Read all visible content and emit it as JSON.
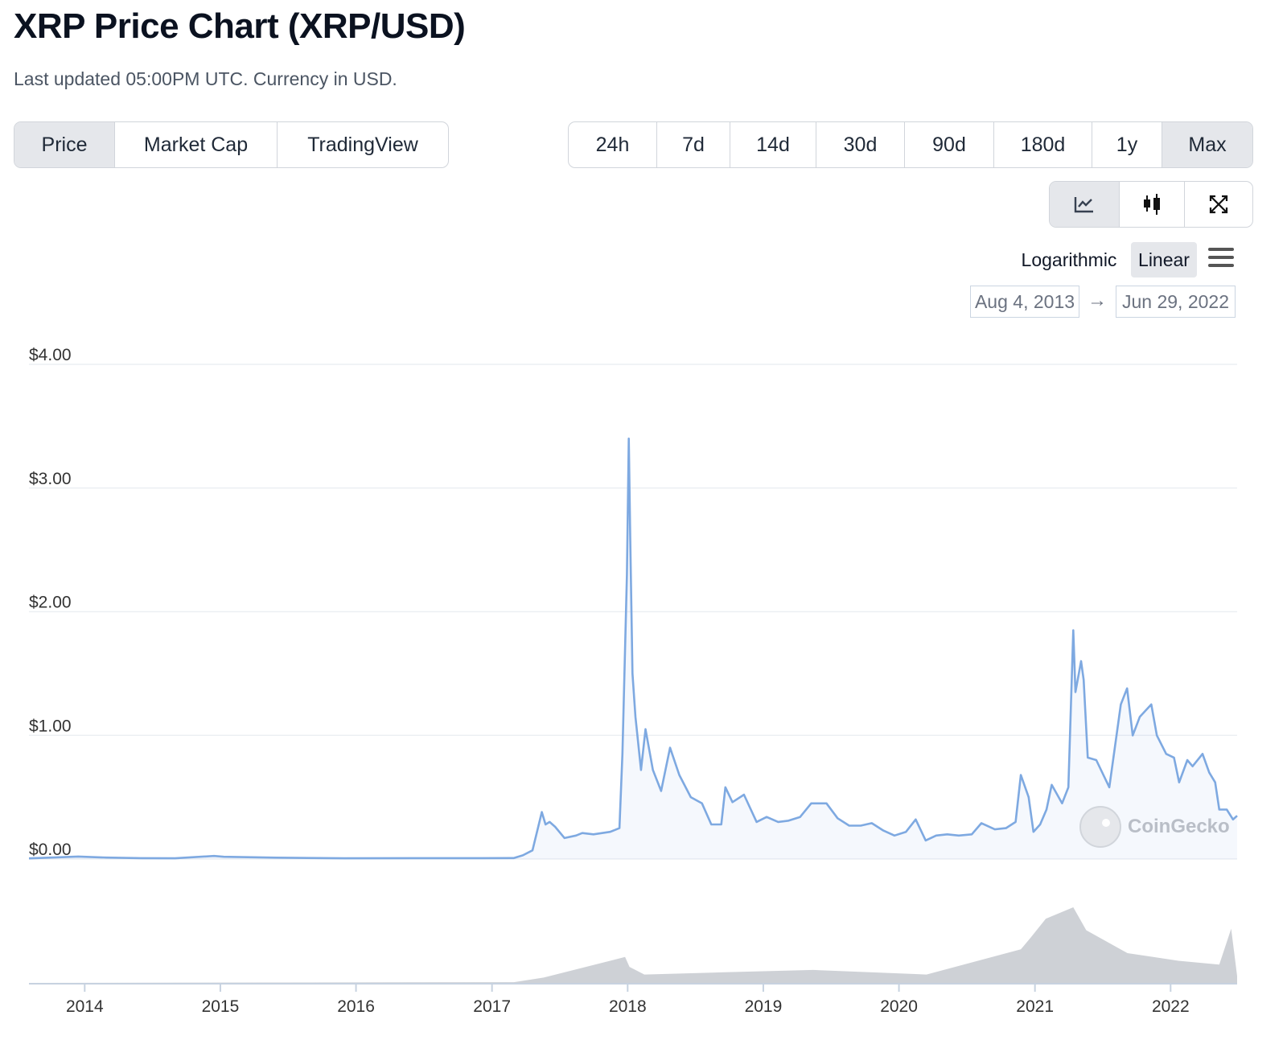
{
  "header": {
    "title": "XRP Price Chart (XRP/USD)",
    "subtitle": "Last updated 05:00PM UTC. Currency in USD."
  },
  "view_tabs": [
    {
      "label": "Price",
      "active": true
    },
    {
      "label": "Market Cap",
      "active": false
    },
    {
      "label": "TradingView",
      "active": false
    }
  ],
  "range_tabs": [
    {
      "label": "24h",
      "active": false
    },
    {
      "label": "7d",
      "active": false
    },
    {
      "label": "14d",
      "active": false
    },
    {
      "label": "30d",
      "active": false
    },
    {
      "label": "90d",
      "active": false
    },
    {
      "label": "180d",
      "active": false
    },
    {
      "label": "1y",
      "active": false
    },
    {
      "label": "Max",
      "active": true
    }
  ],
  "chart_type_icons": [
    "line-chart-icon",
    "candlestick-icon",
    "expand-icon"
  ],
  "scale": {
    "log_label": "Logarithmic",
    "linear_label": "Linear",
    "selected": "Linear"
  },
  "date_range": {
    "from": "Aug 4, 2013",
    "arrow": "→",
    "to": "Jun 29, 2022"
  },
  "watermark": {
    "text": "CoinGecko"
  },
  "colors": {
    "line": "#7ea9e1",
    "volume": "#c5c9cf",
    "grid": "#eceff3",
    "axis": "#c7d2e0"
  },
  "chart_data": {
    "type": "area",
    "series": [
      {
        "x": [
          "2013-08-04",
          "2013-12-15",
          "2014-03-01",
          "2014-06-01",
          "2014-09-01",
          "2014-12-15",
          "2015-01-10",
          "2015-06-01",
          "2015-12-01",
          "2016-06-01",
          "2016-12-01",
          "2017-03-01",
          "2017-03-25",
          "2017-04-20",
          "2017-05-15",
          "2017-05-25",
          "2017-06-05",
          "2017-06-20",
          "2017-07-15",
          "2017-08-15",
          "2017-09-01",
          "2017-10-01",
          "2017-11-15",
          "2017-12-10",
          "2017-12-18",
          "2017-12-30",
          "2018-01-04",
          "2018-01-08",
          "2018-01-14",
          "2018-01-22",
          "2018-02-06",
          "2018-02-18",
          "2018-03-10",
          "2018-04-01",
          "2018-04-25",
          "2018-05-20",
          "2018-06-20",
          "2018-07-20",
          "2018-08-14",
          "2018-09-10",
          "2018-09-21",
          "2018-10-10",
          "2018-11-10",
          "2018-12-14",
          "2019-01-10",
          "2019-02-10",
          "2019-03-10",
          "2019-04-10",
          "2019-05-10",
          "2019-06-20",
          "2019-07-20",
          "2019-08-20",
          "2019-09-20",
          "2019-10-20",
          "2019-11-20",
          "2019-12-20",
          "2020-01-20",
          "2020-02-15",
          "2020-03-13",
          "2020-04-10",
          "2020-05-10",
          "2020-06-10",
          "2020-07-15",
          "2020-08-10",
          "2020-09-15",
          "2020-10-15",
          "2020-11-10",
          "2020-11-24",
          "2020-12-15",
          "2020-12-28",
          "2021-01-15",
          "2021-02-01",
          "2021-02-15",
          "2021-03-15",
          "2021-04-01",
          "2021-04-14",
          "2021-04-20",
          "2021-05-05",
          "2021-05-12",
          "2021-05-23",
          "2021-06-15",
          "2021-07-20",
          "2021-08-20",
          "2021-09-06",
          "2021-09-21",
          "2021-10-10",
          "2021-11-10",
          "2021-11-25",
          "2021-12-20",
          "2022-01-10",
          "2022-01-24",
          "2022-02-15",
          "2022-03-01",
          "2022-03-28",
          "2022-04-15",
          "2022-05-01",
          "2022-05-12",
          "2022-06-01",
          "2022-06-18",
          "2022-06-29"
        ],
        "y": [
          0.005,
          0.02,
          0.012,
          0.007,
          0.006,
          0.025,
          0.018,
          0.011,
          0.006,
          0.007,
          0.007,
          0.008,
          0.03,
          0.07,
          0.38,
          0.28,
          0.3,
          0.26,
          0.17,
          0.19,
          0.21,
          0.2,
          0.22,
          0.25,
          0.85,
          2.3,
          3.4,
          2.6,
          1.5,
          1.15,
          0.72,
          1.05,
          0.72,
          0.55,
          0.9,
          0.68,
          0.5,
          0.45,
          0.28,
          0.28,
          0.58,
          0.46,
          0.52,
          0.3,
          0.34,
          0.3,
          0.31,
          0.34,
          0.45,
          0.45,
          0.33,
          0.27,
          0.27,
          0.29,
          0.23,
          0.19,
          0.22,
          0.32,
          0.15,
          0.19,
          0.2,
          0.19,
          0.2,
          0.29,
          0.24,
          0.25,
          0.3,
          0.68,
          0.5,
          0.22,
          0.28,
          0.4,
          0.6,
          0.45,
          0.58,
          1.85,
          1.35,
          1.6,
          1.45,
          0.82,
          0.8,
          0.58,
          1.25,
          1.38,
          1.0,
          1.15,
          1.25,
          1.0,
          0.85,
          0.82,
          0.62,
          0.8,
          0.75,
          0.85,
          0.7,
          0.62,
          0.4,
          0.4,
          0.32,
          0.35
        ]
      }
    ],
    "volume": {
      "x": [
        "2013-08-04",
        "2017-03-01",
        "2017-05-20",
        "2017-12-25",
        "2018-01-06",
        "2018-02-15",
        "2018-09-20",
        "2019-05-15",
        "2020-03-15",
        "2020-11-24",
        "2020-12-20",
        "2021-01-30",
        "2021-04-14",
        "2021-05-19",
        "2021-09-07",
        "2021-11-15",
        "2022-01-22",
        "2022-05-12",
        "2022-06-13",
        "2022-06-29"
      ],
      "y": [
        0.01,
        0.02,
        0.08,
        0.35,
        0.22,
        0.12,
        0.15,
        0.18,
        0.12,
        0.45,
        0.6,
        0.85,
        1.0,
        0.7,
        0.4,
        0.35,
        0.3,
        0.25,
        0.72,
        0.1
      ]
    },
    "y_ticks": [
      "$0.00",
      "$1.00",
      "$2.00",
      "$3.00",
      "$4.00"
    ],
    "x_ticks": [
      "2014",
      "2015",
      "2016",
      "2017",
      "2018",
      "2019",
      "2020",
      "2021",
      "2022"
    ],
    "ylim": [
      0,
      4
    ],
    "xlim": [
      "2013-08-04",
      "2022-06-29"
    ],
    "grid": true,
    "scale": "linear"
  }
}
